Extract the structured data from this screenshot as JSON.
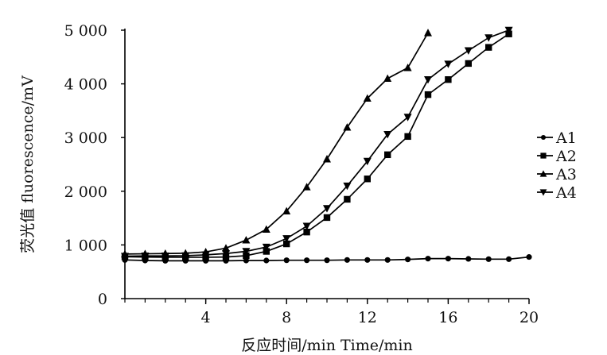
{
  "chart_data": {
    "type": "line",
    "xlabel": "反应时间/min  Time/min",
    "ylabel": "荧光值  fluorescence/mV",
    "xlim": [
      0,
      20
    ],
    "ylim": [
      0,
      5000
    ],
    "x_ticks": [
      4,
      8,
      12,
      16,
      20
    ],
    "x_tick_labels": [
      "4",
      "8",
      "12",
      "16",
      "20"
    ],
    "y_ticks": [
      0,
      1000,
      2000,
      3000,
      4000,
      5000
    ],
    "y_tick_labels": [
      "0",
      "1 000",
      "2 000",
      "3 000",
      "4 000",
      "5 000"
    ],
    "grid": false,
    "legend_position": "right",
    "series": [
      {
        "name": "A1",
        "marker": "circle",
        "x": [
          0,
          1,
          2,
          3,
          4,
          5,
          6,
          7,
          8,
          9,
          10,
          11,
          12,
          13,
          14,
          15,
          16,
          17,
          18,
          19,
          20
        ],
        "y": [
          720,
          710,
          705,
          705,
          705,
          705,
          710,
          710,
          715,
          715,
          715,
          720,
          720,
          720,
          730,
          745,
          745,
          740,
          735,
          735,
          775
        ]
      },
      {
        "name": "A2",
        "marker": "square",
        "x": [
          0,
          1,
          2,
          3,
          4,
          5,
          6,
          7,
          8,
          9,
          10,
          11,
          12,
          13,
          14,
          15,
          16,
          17,
          18,
          19
        ],
        "y": [
          780,
          775,
          770,
          770,
          770,
          775,
          800,
          880,
          1020,
          1240,
          1510,
          1850,
          2230,
          2680,
          3020,
          3800,
          4080,
          4380,
          4680,
          4930
        ]
      },
      {
        "name": "A3",
        "marker": "triangle-up",
        "x": [
          0,
          1,
          2,
          3,
          4,
          5,
          6,
          7,
          8,
          9,
          10,
          11,
          12,
          13,
          14,
          15
        ],
        "y": [
          830,
          835,
          840,
          845,
          870,
          940,
          1090,
          1290,
          1630,
          2080,
          2600,
          3190,
          3730,
          4100,
          4300,
          4950
        ]
      },
      {
        "name": "A4",
        "marker": "triangle-down",
        "x": [
          0,
          1,
          2,
          3,
          4,
          5,
          6,
          7,
          8,
          9,
          10,
          11,
          12,
          13,
          14,
          15,
          16,
          17,
          18,
          19
        ],
        "y": [
          790,
          795,
          795,
          800,
          815,
          840,
          880,
          960,
          1120,
          1350,
          1680,
          2100,
          2560,
          3060,
          3380,
          4080,
          4370,
          4620,
          4860,
          5000
        ]
      }
    ]
  }
}
